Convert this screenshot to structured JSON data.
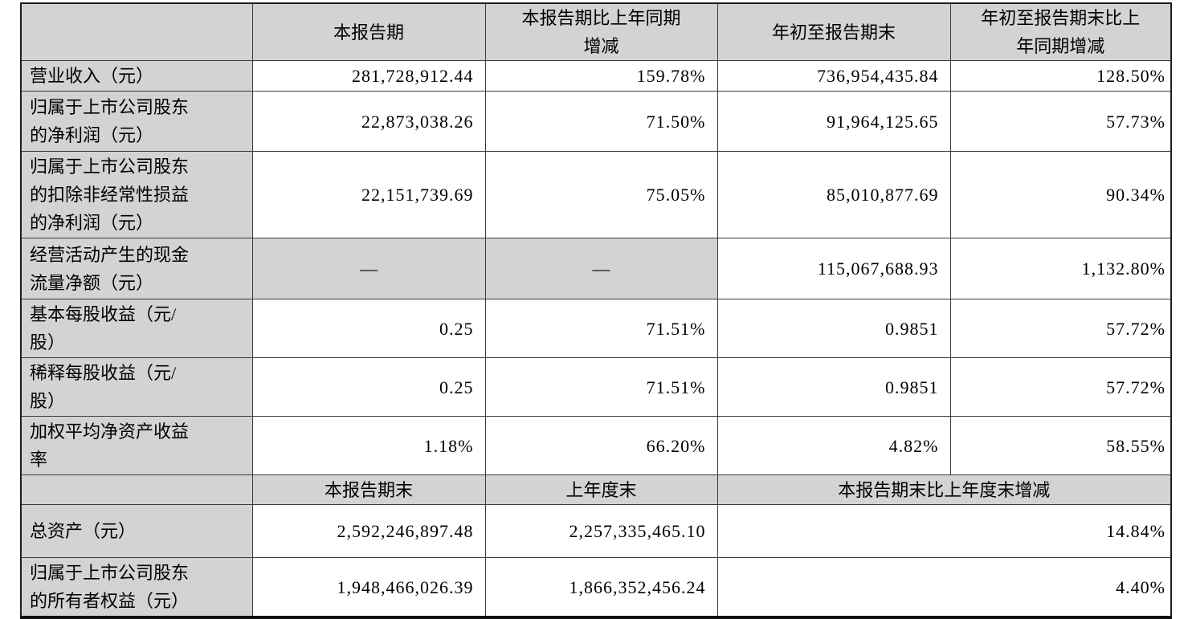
{
  "main_table": {
    "na_placeholder": "—",
    "section_period": {
      "column_headers": [
        "",
        "本报告期",
        "本报告期比上年同期\n增减",
        "年初至报告期末",
        "年初至报告期末比上\n年同期增减"
      ],
      "rows": [
        {
          "label": "营业收入（元）",
          "values": [
            "281,728,912.44",
            "159.78%",
            "736,954,435.84",
            "128.50%"
          ]
        },
        {
          "label": "归属于上市公司股东\n的净利润（元）",
          "values": [
            "22,873,038.26",
            "71.50%",
            "91,964,125.65",
            "57.73%"
          ]
        },
        {
          "label": "归属于上市公司股东\n的扣除非经常性损益\n的净利润（元）",
          "values": [
            "22,151,739.69",
            "75.05%",
            "85,010,877.69",
            "90.34%"
          ]
        },
        {
          "label": "经营活动产生的现金\n流量净额（元）",
          "values": [
            "—",
            "—",
            "115,067,688.93",
            "1,132.80%"
          ]
        },
        {
          "label": "基本每股收益（元/\n股）",
          "values": [
            "0.25",
            "71.51%",
            "0.9851",
            "57.72%"
          ]
        },
        {
          "label": "稀释每股收益（元/\n股）",
          "values": [
            "0.25",
            "71.51%",
            "0.9851",
            "57.72%"
          ]
        },
        {
          "label": "加权平均净资产收益\n率",
          "values": [
            "1.18%",
            "66.20%",
            "4.82%",
            "58.55%"
          ]
        }
      ]
    },
    "section_yearend": {
      "column_headers": [
        "",
        "本报告期末",
        "上年度末",
        "本报告期末比上年度末增减"
      ],
      "rows": [
        {
          "label": "总资产（元）",
          "values": [
            "2,592,246,897.48",
            "2,257,335,465.10",
            "14.84%"
          ]
        },
        {
          "label": "归属于上市公司股东\n的所有者权益（元）",
          "values": [
            "1,948,466,026.39",
            "1,866,352,456.24",
            "4.40%"
          ]
        }
      ]
    },
    "colors": {
      "shaded_bg": "#d3d3d3",
      "border": "#3a3a3a",
      "page_bg": "#ffffff",
      "text": "#000000"
    }
  }
}
